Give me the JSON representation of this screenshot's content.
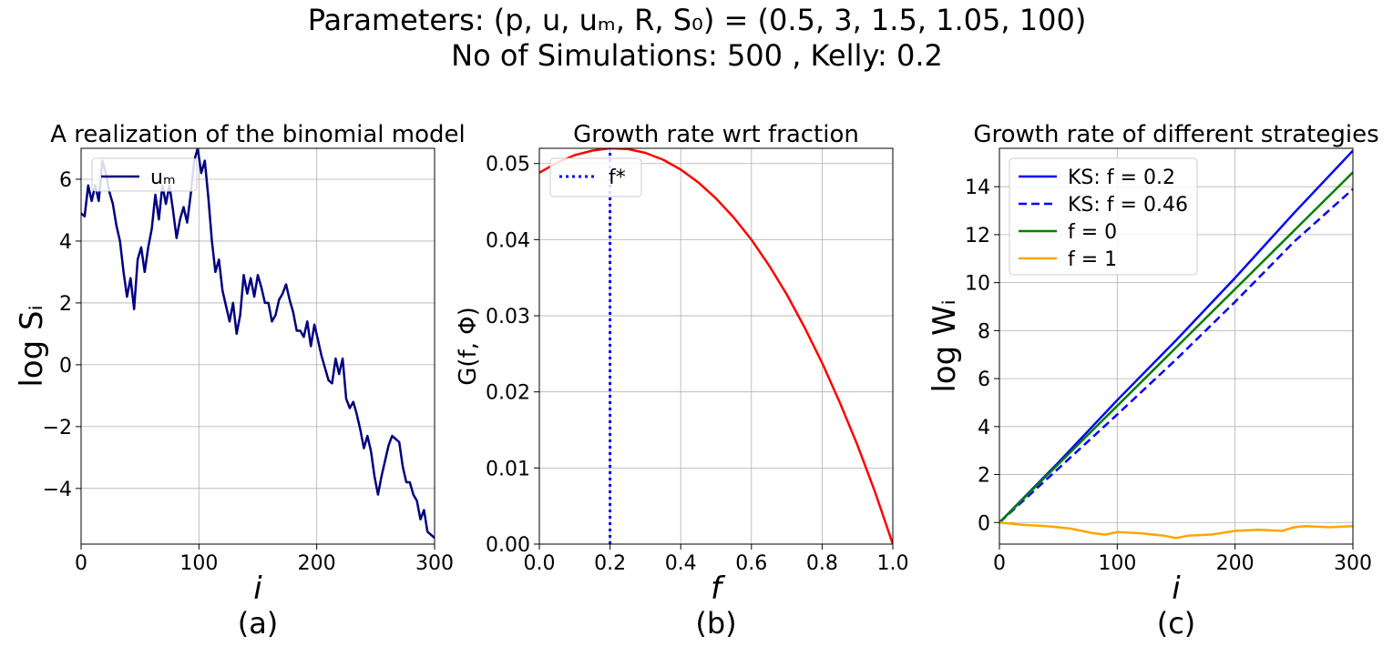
{
  "figure": {
    "suptitle_line1": "Parameters: (p, u, uₘ, R, S₀) = (0.5, 3, 1.5, 1.05, 100)",
    "suptitle_line2": "No of Simulations: 500  ,  Kelly: 0.2"
  },
  "chart_data": [
    {
      "id": "a",
      "type": "line",
      "title": "A realization of the binomial model",
      "xlabel": "i",
      "ylabel": "log Sᵢ",
      "sublabel": "(a)",
      "xlim": [
        0,
        300
      ],
      "ylim": [
        -5.8,
        7.0
      ],
      "xticks": [
        0,
        100,
        200,
        300
      ],
      "xtick_labels": [
        "0",
        "100",
        "200",
        "300"
      ],
      "yticks": [
        -4,
        -2,
        0,
        2,
        4,
        6
      ],
      "ytick_labels": [
        "−4",
        "−2",
        "0",
        "2",
        "4",
        "6"
      ],
      "grid": true,
      "legend_position": "top-left",
      "series": [
        {
          "name": "uₘ",
          "color": "#000080",
          "style": "solid",
          "x": [
            0,
            3,
            6,
            9,
            12,
            15,
            18,
            21,
            24,
            27,
            30,
            33,
            36,
            39,
            42,
            45,
            48,
            51,
            54,
            57,
            60,
            63,
            66,
            69,
            72,
            75,
            78,
            81,
            84,
            87,
            90,
            93,
            96,
            99,
            102,
            105,
            108,
            111,
            114,
            117,
            120,
            123,
            126,
            129,
            132,
            135,
            138,
            141,
            144,
            147,
            150,
            153,
            156,
            159,
            162,
            165,
            168,
            171,
            174,
            177,
            180,
            183,
            186,
            189,
            192,
            195,
            198,
            201,
            204,
            207,
            210,
            213,
            216,
            219,
            222,
            225,
            228,
            231,
            234,
            237,
            240,
            243,
            246,
            249,
            252,
            255,
            258,
            261,
            264,
            267,
            270,
            273,
            276,
            279,
            282,
            285,
            288,
            291,
            294,
            297,
            300
          ],
          "values": [
            4.9,
            4.8,
            5.8,
            5.3,
            5.8,
            5.3,
            6.6,
            6.2,
            5.6,
            5.2,
            4.5,
            4.0,
            3.0,
            2.2,
            2.8,
            1.8,
            3.4,
            3.8,
            3.0,
            3.8,
            4.4,
            5.5,
            4.7,
            5.8,
            5.2,
            5.8,
            5.0,
            4.1,
            4.7,
            5.1,
            4.6,
            5.5,
            6.6,
            7.0,
            6.2,
            6.6,
            5.4,
            4.0,
            3.0,
            3.4,
            2.4,
            1.9,
            1.4,
            2.0,
            1.0,
            1.6,
            2.9,
            2.3,
            2.8,
            2.2,
            2.9,
            2.5,
            2.0,
            2.0,
            1.4,
            1.6,
            2.1,
            2.3,
            2.6,
            2.1,
            1.7,
            1.1,
            1.1,
            0.9,
            1.4,
            0.6,
            1.3,
            0.8,
            0.3,
            -0.1,
            -0.5,
            -0.6,
            0.2,
            -0.3,
            0.2,
            -1.1,
            -1.4,
            -1.2,
            -1.6,
            -2.1,
            -2.7,
            -2.3,
            -2.8,
            -3.6,
            -4.2,
            -3.6,
            -3.1,
            -2.6,
            -2.3,
            -2.4,
            -2.5,
            -3.3,
            -3.8,
            -3.8,
            -4.2,
            -4.4,
            -5.0,
            -4.7,
            -5.4,
            -5.5,
            -5.6
          ]
        }
      ]
    },
    {
      "id": "b",
      "type": "line",
      "title": "Growth rate wrt fraction",
      "xlabel": "f",
      "ylabel": "G(f, Φ)",
      "sublabel": "(b)",
      "xlim": [
        0.0,
        1.0
      ],
      "ylim": [
        0.0,
        0.052
      ],
      "xticks": [
        0.0,
        0.2,
        0.4,
        0.6,
        0.8,
        1.0
      ],
      "xtick_labels": [
        "0.0",
        "0.2",
        "0.4",
        "0.6",
        "0.8",
        "1.0"
      ],
      "yticks": [
        0.0,
        0.01,
        0.02,
        0.03,
        0.04,
        0.05
      ],
      "ytick_labels": [
        "0.00",
        "0.01",
        "0.02",
        "0.03",
        "0.04",
        "0.05"
      ],
      "grid": true,
      "legend_position": "top-left",
      "series": [
        {
          "name": "G",
          "color": "#ff0000",
          "style": "solid",
          "x": [
            0.0,
            0.05,
            0.1,
            0.15,
            0.2,
            0.25,
            0.3,
            0.35,
            0.4,
            0.45,
            0.5,
            0.55,
            0.6,
            0.65,
            0.7,
            0.75,
            0.8,
            0.85,
            0.9,
            0.95,
            1.0
          ],
          "values": [
            0.0488,
            0.0501,
            0.0511,
            0.0517,
            0.052,
            0.0519,
            0.0514,
            0.0505,
            0.0492,
            0.0475,
            0.0454,
            0.0429,
            0.04,
            0.0366,
            0.0328,
            0.0285,
            0.0238,
            0.0186,
            0.013,
            0.0068,
            0.0
          ]
        },
        {
          "name": "f*",
          "color": "#0000ff",
          "style": "dotted",
          "x": [
            0.2,
            0.2
          ],
          "values": [
            0.0,
            0.052
          ]
        }
      ],
      "legend": [
        "f*"
      ]
    },
    {
      "id": "c",
      "type": "line",
      "title": "Growth rate of different strategies",
      "xlabel": "i",
      "ylabel": "log Wᵢ",
      "sublabel": "(c)",
      "xlim": [
        0,
        300
      ],
      "ylim": [
        -0.9,
        15.6
      ],
      "xticks": [
        0,
        100,
        200,
        300
      ],
      "xtick_labels": [
        "0",
        "100",
        "200",
        "300"
      ],
      "yticks": [
        0,
        2,
        4,
        6,
        8,
        10,
        12,
        14
      ],
      "ytick_labels": [
        "0",
        "2",
        "4",
        "6",
        "8",
        "10",
        "12",
        "14"
      ],
      "grid": true,
      "legend_position": "top-left",
      "series": [
        {
          "name": "KS: f = 0.2",
          "color": "#0000ff",
          "style": "solid",
          "x": [
            0,
            50,
            100,
            150,
            200,
            250,
            300
          ],
          "values": [
            0.0,
            2.5,
            5.1,
            7.6,
            10.2,
            12.9,
            15.5
          ]
        },
        {
          "name": "KS: f = 0.46",
          "color": "#0000ff",
          "style": "dashed",
          "x": [
            0,
            50,
            100,
            150,
            200,
            250,
            300
          ],
          "values": [
            0.0,
            2.25,
            4.5,
            6.8,
            9.2,
            11.7,
            13.9
          ]
        },
        {
          "name": "f = 0",
          "color": "#008000",
          "style": "solid",
          "x": [
            0,
            300
          ],
          "values": [
            0.0,
            14.6
          ]
        },
        {
          "name": "f = 1",
          "color": "#ffa500",
          "style": "solid",
          "x": [
            0,
            20,
            40,
            60,
            80,
            90,
            100,
            120,
            140,
            150,
            160,
            180,
            200,
            220,
            240,
            250,
            260,
            280,
            300
          ],
          "values": [
            0.0,
            -0.1,
            -0.15,
            -0.25,
            -0.45,
            -0.5,
            -0.4,
            -0.45,
            -0.55,
            -0.65,
            -0.55,
            -0.5,
            -0.35,
            -0.3,
            -0.35,
            -0.2,
            -0.15,
            -0.2,
            -0.15
          ]
        }
      ]
    }
  ]
}
